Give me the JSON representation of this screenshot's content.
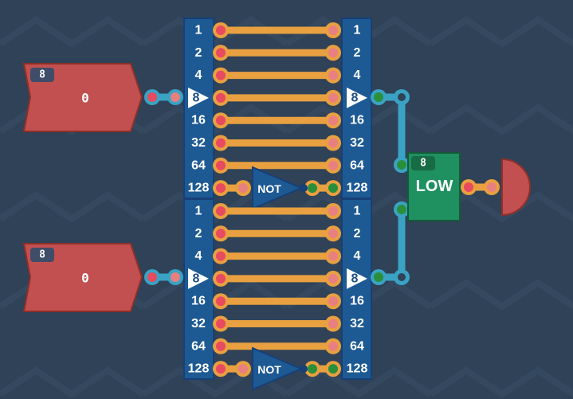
{
  "colors": {
    "background": "#2f4257",
    "component_blue": "#1d5a94",
    "wire_orange": "#e8a040",
    "bus_cyan": "#3aa3c4",
    "input_red": "#c25050",
    "low_green": "#1f9060",
    "pin_red": "#e84a60",
    "pin_pink": "#e88080",
    "pin_green": "#2a8f3a"
  },
  "inputs": [
    {
      "bit_width": "8",
      "value": "0"
    },
    {
      "bit_width": "8",
      "value": "0"
    }
  ],
  "splitter": {
    "bits": [
      "1",
      "2",
      "4",
      "8",
      "16",
      "32",
      "64",
      "128"
    ],
    "bus_label": "8"
  },
  "not_gate": {
    "label": "NOT"
  },
  "comparator": {
    "bit_width": "8",
    "label": "LOW"
  }
}
